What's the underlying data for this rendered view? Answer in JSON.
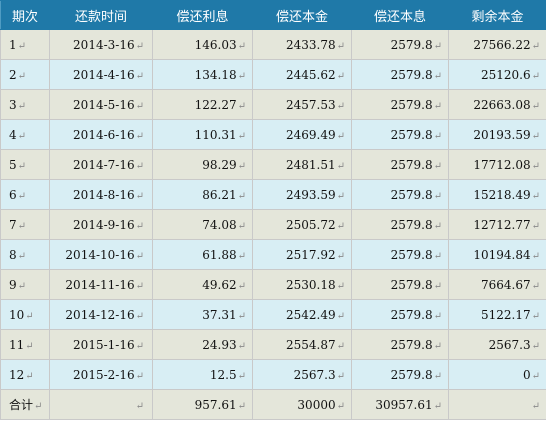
{
  "columns": [
    "期次",
    "还款时间",
    "偿还利息",
    "偿还本金",
    "偿还本息",
    "剩余本金"
  ],
  "rows": [
    [
      "1",
      "2014-3-16",
      "146.03",
      "2433.78",
      "2579.8",
      "27566.22"
    ],
    [
      "2",
      "2014-4-16",
      "134.18",
      "2445.62",
      "2579.8",
      "25120.6"
    ],
    [
      "3",
      "2014-5-16",
      "122.27",
      "2457.53",
      "2579.8",
      "22663.08"
    ],
    [
      "4",
      "2014-6-16",
      "110.31",
      "2469.49",
      "2579.8",
      "20193.59"
    ],
    [
      "5",
      "2014-7-16",
      "98.29",
      "2481.51",
      "2579.8",
      "17712.08"
    ],
    [
      "6",
      "2014-8-16",
      "86.21",
      "2493.59",
      "2579.8",
      "15218.49"
    ],
    [
      "7",
      "2014-9-16",
      "74.08",
      "2505.72",
      "2579.8",
      "12712.77"
    ],
    [
      "8",
      "2014-10-16",
      "61.88",
      "2517.92",
      "2579.8",
      "10194.84"
    ],
    [
      "9",
      "2014-11-16",
      "49.62",
      "2530.18",
      "2579.8",
      "7664.67"
    ],
    [
      "10",
      "2014-12-16",
      "37.31",
      "2542.49",
      "2579.8",
      "5122.17"
    ],
    [
      "11",
      "2015-1-16",
      "24.93",
      "2554.87",
      "2579.8",
      "2567.3"
    ],
    [
      "12",
      "2015-2-16",
      "12.5",
      "2567.3",
      "2579.8",
      "0"
    ]
  ],
  "total": [
    "合计",
    "",
    "957.61",
    "30000",
    "30957.61",
    ""
  ],
  "paragraph_mark": "↵",
  "colors": {
    "header_bg": "#1f79a8",
    "row_odd_bg": "#e4e6da",
    "row_even_bg": "#d8eef4",
    "border": "#c9c9c9"
  }
}
